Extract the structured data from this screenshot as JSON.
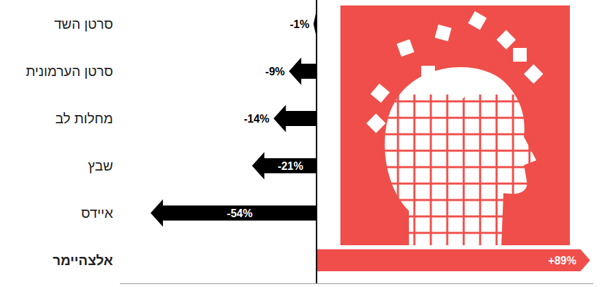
{
  "chart_data": {
    "type": "bar",
    "orientation": "horizontal",
    "categories": [
      "סרטן השד",
      "סרטן הערמונית",
      "מחלות לב",
      "שבץ",
      "איידס",
      "אלצהיימר"
    ],
    "values": [
      -1,
      -9,
      -14,
      -21,
      -54,
      89
    ],
    "value_labels": [
      "-1%",
      "-9%",
      "-14%",
      "-21%",
      "-54%",
      "+89%"
    ],
    "colors": [
      "#000000",
      "#000000",
      "#000000",
      "#000000",
      "#000000",
      "#f04e4a"
    ],
    "data_labels": true,
    "xlim": [
      -64,
      90
    ],
    "xticks": [
      0
    ],
    "tick_labels": "y"
  }
}
